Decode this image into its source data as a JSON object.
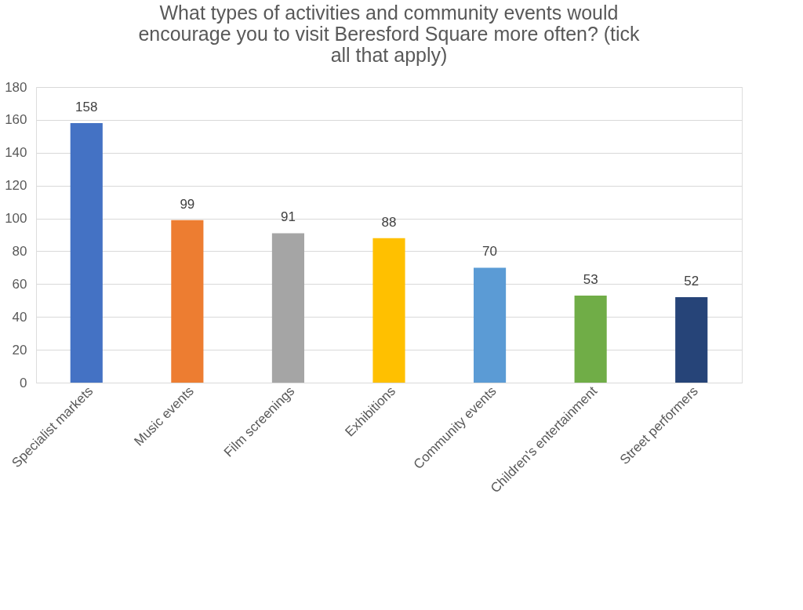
{
  "chart_data": {
    "type": "bar",
    "title": "What types of activities and community events would encourage you to visit Beresford Square more often? (tick all that apply)",
    "categories": [
      "Specialist markets",
      "Music events",
      "Film screenings",
      "Exhibitions",
      "Community events",
      "Children's entertainment",
      "Street performers"
    ],
    "values": [
      158,
      99,
      91,
      88,
      70,
      53,
      52
    ],
    "colors": [
      "#4472c4",
      "#ed7d31",
      "#a5a5a5",
      "#ffc000",
      "#5b9bd5",
      "#70ad47",
      "#264478"
    ],
    "ylim": [
      0,
      180
    ],
    "yticks": [
      0,
      20,
      40,
      60,
      80,
      100,
      120,
      140,
      160,
      180
    ],
    "grid": "y",
    "data_labels": true,
    "legend": false
  }
}
